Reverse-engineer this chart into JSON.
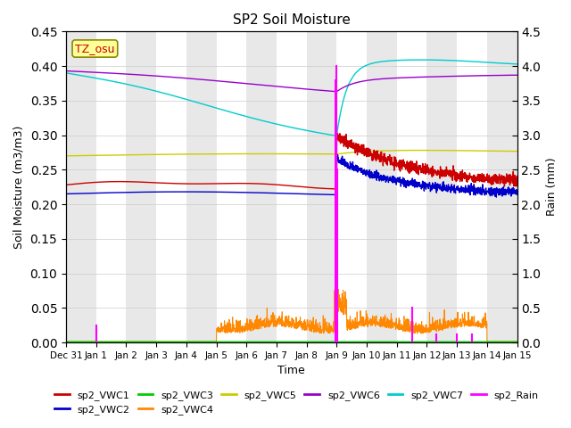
{
  "title": "SP2 Soil Moisture",
  "xlabel": "Time",
  "ylabel_left": "Soil Moisture (m3/m3)",
  "ylabel_right": "Rain (mm)",
  "ylim_left": [
    0.0,
    0.45
  ],
  "ylim_right": [
    0.0,
    4.5
  ],
  "yticks_left": [
    0.0,
    0.05,
    0.1,
    0.15,
    0.2,
    0.25,
    0.3,
    0.35,
    0.4,
    0.45
  ],
  "yticks_right": [
    0.0,
    0.5,
    1.0,
    1.5,
    2.0,
    2.5,
    3.0,
    3.5,
    4.0,
    4.5
  ],
  "annotation_text": "TZ_osu",
  "annotation_color": "#cc0000",
  "annotation_bg": "#ffff99",
  "colors": {
    "sp2_VWC1": "#cc0000",
    "sp2_VWC2": "#0000cc",
    "sp2_VWC3": "#00cc00",
    "sp2_VWC4": "#ff8800",
    "sp2_VWC5": "#cccc00",
    "sp2_VWC6": "#9900cc",
    "sp2_VWC7": "#00cccc",
    "sp2_Rain": "#ff00ff"
  },
  "bg_light": "#e8e8e8",
  "bg_white": "#ffffff"
}
